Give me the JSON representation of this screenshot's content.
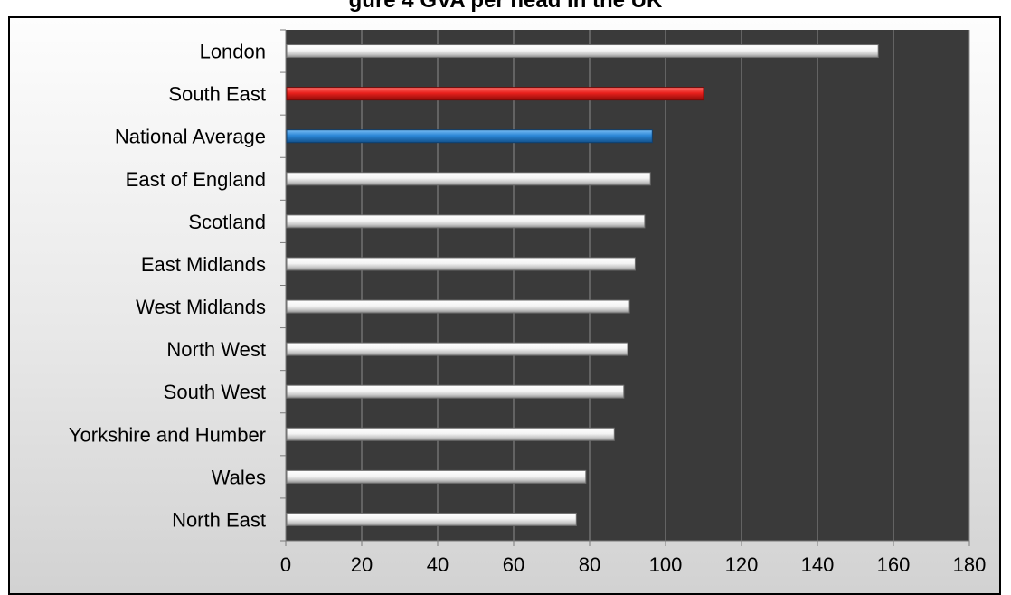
{
  "chart_data": {
    "type": "bar",
    "orientation": "horizontal",
    "title": "gure 4 GVA per head in the UK",
    "categories": [
      "London",
      "South East",
      "National Average",
      "East of England",
      "Scotland",
      "East Midlands",
      "West Midlands",
      "North West",
      "South West",
      "Yorkshire and Humber",
      "Wales",
      "North East"
    ],
    "values": [
      156,
      110,
      96.5,
      96,
      94.5,
      92,
      90.5,
      90,
      89,
      86.5,
      79,
      76.5
    ],
    "bar_colors": [
      "#ffffff",
      "#e8201c",
      "#2b86d6",
      "#ffffff",
      "#ffffff",
      "#ffffff",
      "#ffffff",
      "#ffffff",
      "#ffffff",
      "#ffffff",
      "#ffffff",
      "#ffffff"
    ],
    "xlim": [
      0,
      180
    ],
    "xticks": [
      "0",
      "20",
      "40",
      "60",
      "80",
      "100",
      "120",
      "140",
      "160",
      "180"
    ],
    "xlabel": "",
    "ylabel": "",
    "grid": true,
    "plot_background": "#3a3a3a",
    "legend": "none"
  }
}
